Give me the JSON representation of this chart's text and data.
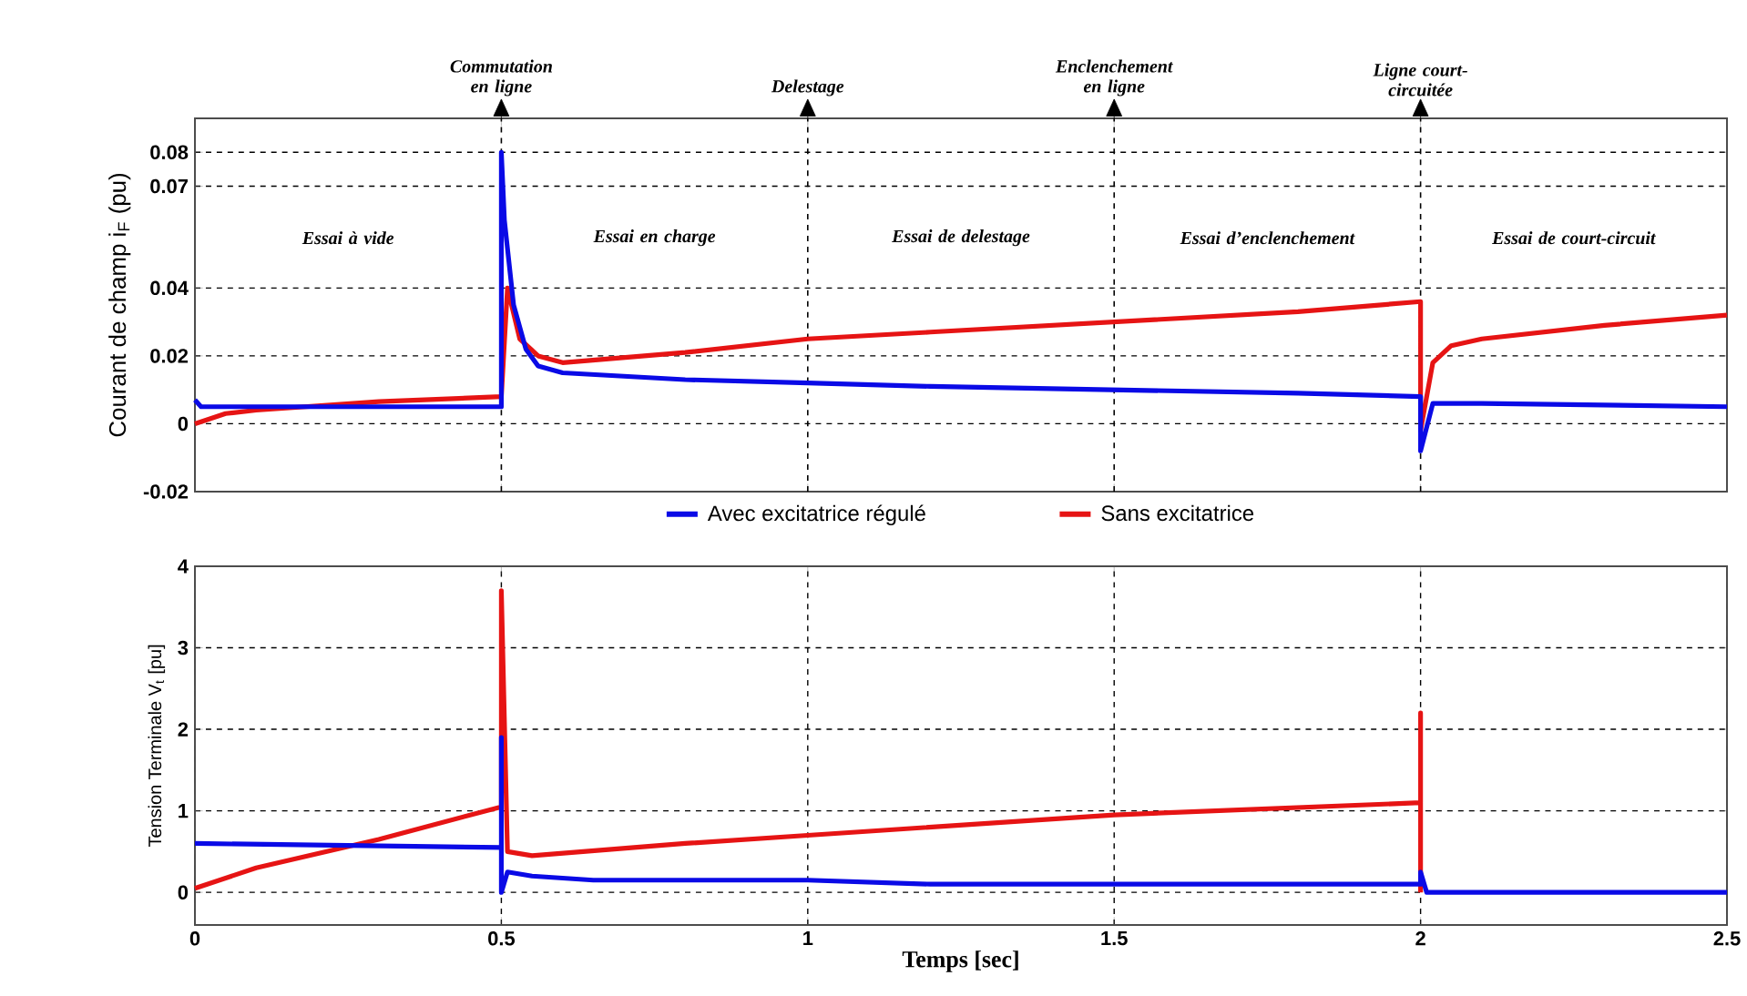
{
  "chart_data": [
    {
      "type": "line",
      "ylabel": "Courant de champ i$_{F}$ (pu)",
      "xlim": [
        0,
        2.5
      ],
      "xticks": [
        0,
        0.5,
        1,
        1.5,
        2,
        2.5
      ],
      "ylim": [
        -0.02,
        0.09
      ],
      "yticks": [
        -0.02,
        0,
        0.02,
        0.04,
        0.07,
        0.08
      ],
      "tick_labels": "y",
      "grid": "y",
      "legend": "bottom",
      "line_style": "solid",
      "marker": "none",
      "series": [
        {
          "name": "Avec excitatrice régulé",
          "color": "#0a0ae6",
          "x": [
            0,
            0.01,
            0.1,
            0.3,
            0.5,
            0.5,
            0.505,
            0.52,
            0.54,
            0.56,
            0.6,
            0.7,
            0.8,
            1.0,
            1.2,
            1.5,
            1.8,
            2.0,
            2.0,
            2.02,
            2.1,
            2.5
          ],
          "values": [
            0.007,
            0.005,
            0.005,
            0.005,
            0.005,
            0.08,
            0.06,
            0.035,
            0.022,
            0.017,
            0.015,
            0.014,
            0.013,
            0.012,
            0.011,
            0.01,
            0.009,
            0.008,
            -0.008,
            0.006,
            0.006,
            0.005
          ]
        },
        {
          "name": "Sans excitatrice",
          "color": "#e61414",
          "x": [
            0,
            0.05,
            0.1,
            0.3,
            0.5,
            0.51,
            0.53,
            0.56,
            0.6,
            0.8,
            1.0,
            1.2,
            1.5,
            1.8,
            2.0,
            2.0,
            2.02,
            2.05,
            2.1,
            2.3,
            2.5
          ],
          "values": [
            0.0,
            0.003,
            0.004,
            0.0065,
            0.008,
            0.04,
            0.025,
            0.02,
            0.018,
            0.021,
            0.025,
            0.027,
            0.03,
            0.033,
            0.036,
            -0.002,
            0.018,
            0.023,
            0.025,
            0.029,
            0.032
          ]
        }
      ],
      "ref_lines": [
        {
          "axis": "x",
          "value": 0.5,
          "label": "Commutation en ligne"
        },
        {
          "axis": "x",
          "value": 1,
          "label": "Delestage"
        },
        {
          "axis": "x",
          "value": 1.5,
          "label": "Enclenchement en ligne"
        },
        {
          "axis": "x",
          "value": 2,
          "label": "Ligne court-circuitée"
        }
      ],
      "annotations": [
        "Essai à vide",
        "Essai en charge",
        "Essai de delestage",
        "Essai d’enclenchement",
        "Essai de court-circuit"
      ]
    },
    {
      "type": "line",
      "xlabel": "Temps [sec]",
      "ylabel": "Tension Terminale V$_{t}$ [pu]",
      "xlim": [
        0,
        2.5
      ],
      "xticks": [
        0,
        0.5,
        1,
        1.5,
        2,
        2.5
      ],
      "ylim": [
        -0.4,
        4
      ],
      "yticks": [
        0,
        1,
        2,
        3,
        4
      ],
      "grid": true,
      "line_style": "solid",
      "marker": "none",
      "series": [
        {
          "color": "#0a0ae6",
          "x": [
            0,
            0.5,
            0.5,
            0.5,
            0.51,
            0.55,
            0.65,
            1.0,
            1.2,
            1.5,
            2.0,
            2.0,
            2.01,
            2.5
          ],
          "values": [
            0.6,
            0.55,
            1.9,
            0.0,
            0.25,
            0.2,
            0.15,
            0.15,
            0.1,
            0.1,
            0.1,
            0.25,
            0.0,
            0.0
          ]
        },
        {
          "color": "#e61414",
          "x": [
            0,
            0.1,
            0.3,
            0.5,
            0.5,
            0.51,
            0.55,
            0.8,
            1.0,
            1.5,
            2.0,
            2.0,
            2.0
          ],
          "values": [
            0.05,
            0.3,
            0.65,
            1.05,
            3.7,
            0.5,
            0.45,
            0.6,
            0.7,
            0.95,
            1.1,
            2.2,
            0.0
          ]
        }
      ]
    }
  ]
}
